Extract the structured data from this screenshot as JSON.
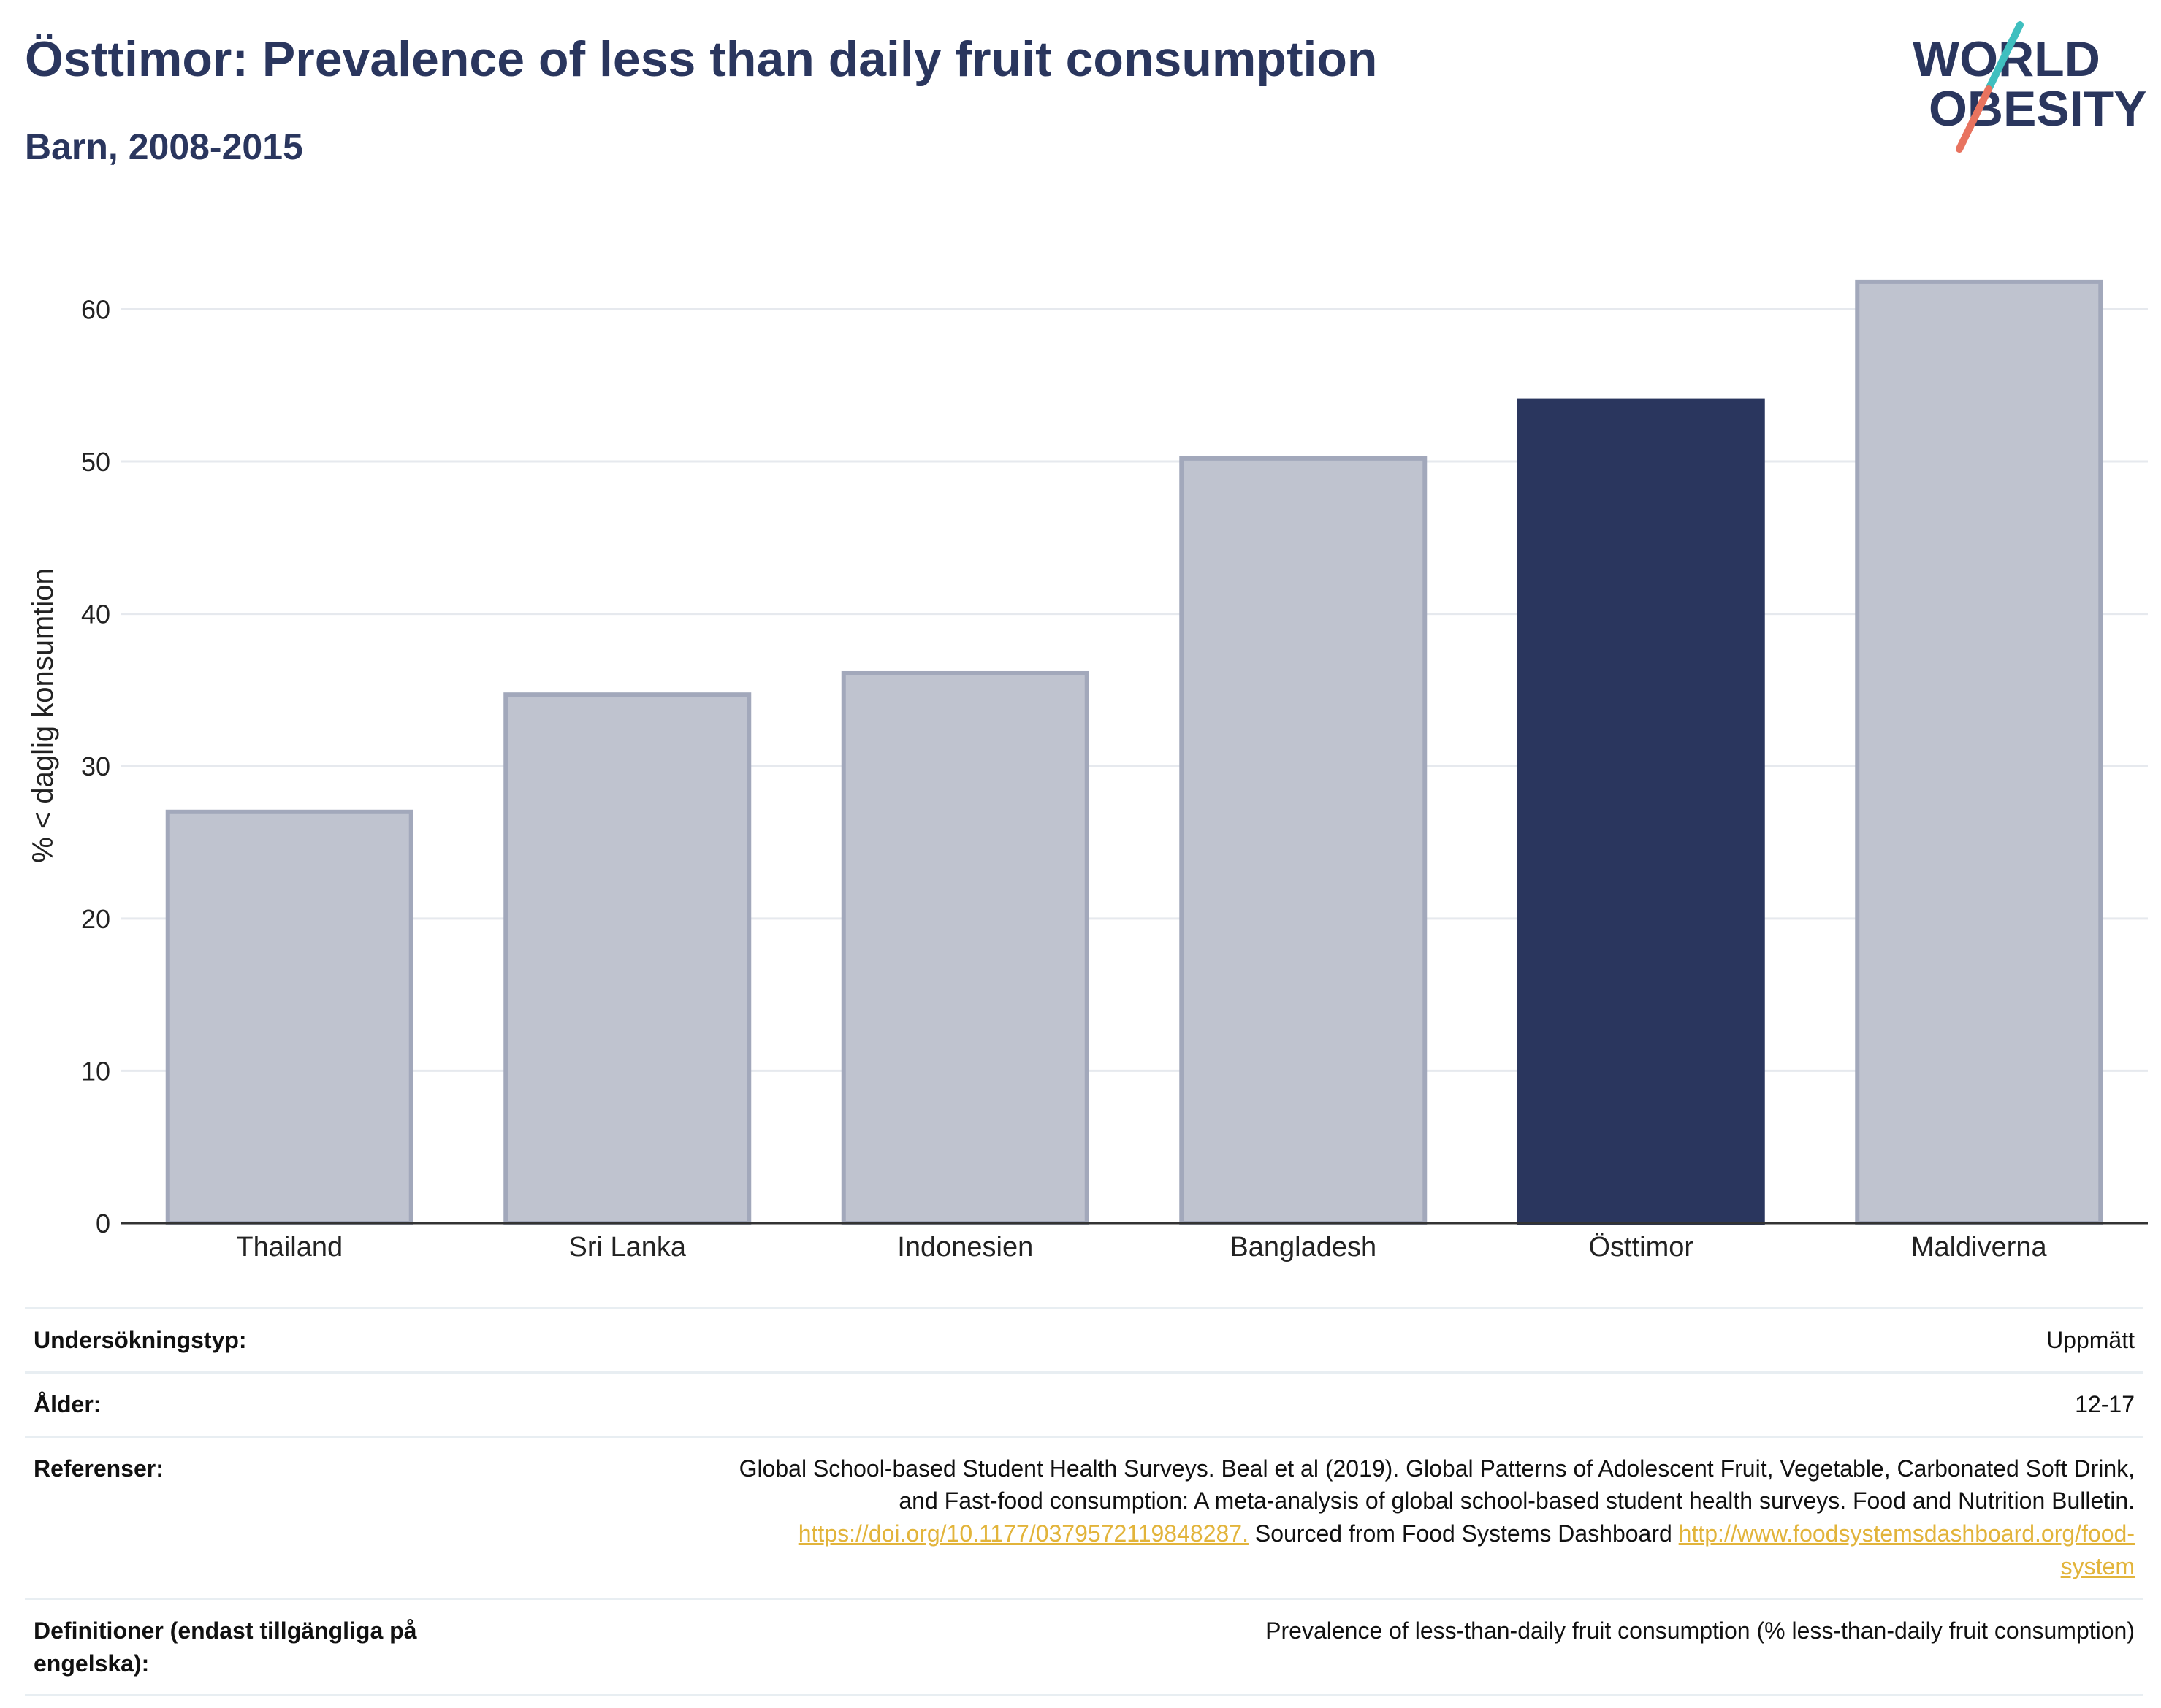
{
  "header": {
    "title": "Östtimor: Prevalence of less than daily fruit consumption",
    "subtitle": "Barn, 2008-2015"
  },
  "logo": {
    "line1": "WORLD",
    "line2": "OBESITY",
    "colors": {
      "text": "#2a365e",
      "slash_top": "#3fbfbf",
      "slash_bottom": "#e8735f"
    }
  },
  "chart_data": {
    "type": "bar",
    "categories": [
      "Thailand",
      "Sri Lanka",
      "Indonesien",
      "Bangladesh",
      "Östtimor",
      "Maldiverna"
    ],
    "values": [
      27.0,
      34.7,
      36.1,
      50.2,
      54.0,
      61.8
    ],
    "highlight": "Östtimor",
    "xlabel": "",
    "ylabel": "% < daglig konsumtion",
    "ylim": [
      0,
      64
    ],
    "yticks": [
      0,
      10,
      20,
      30,
      40,
      50,
      60
    ],
    "grid": true,
    "colors": {
      "bar": "#bfc3cf",
      "bar_border": "#a2a8bb",
      "highlight": "#2a365e",
      "grid": "#e6e9ee",
      "axis": "#333333"
    }
  },
  "info": {
    "survey_type": {
      "label": "Undersökningstyp:",
      "value": "Uppmätt"
    },
    "age": {
      "label": "Ålder:",
      "value": "12-17"
    },
    "references": {
      "label": "Referenser:",
      "text1": "Global School-based Student Health Surveys. Beal et al (2019). Global Patterns of Adolescent Fruit, Vegetable, Carbonated Soft Drink,",
      "text2": "and Fast-food consumption: A meta-analysis of global school-based student health surveys. Food and Nutrition Bulletin.",
      "link1": "https://doi.org/10.1177/0379572119848287.",
      "text3": " Sourced from Food Systems Dashboard ",
      "link2a": "http://www.foodsystemsdashboard.org/food-",
      "link2b": "system"
    },
    "definitions": {
      "label": "Definitioner (endast tillgängliga på engelska):",
      "value": "Prevalence of less-than-daily fruit consumption (% less-than-daily fruit consumption)"
    }
  }
}
